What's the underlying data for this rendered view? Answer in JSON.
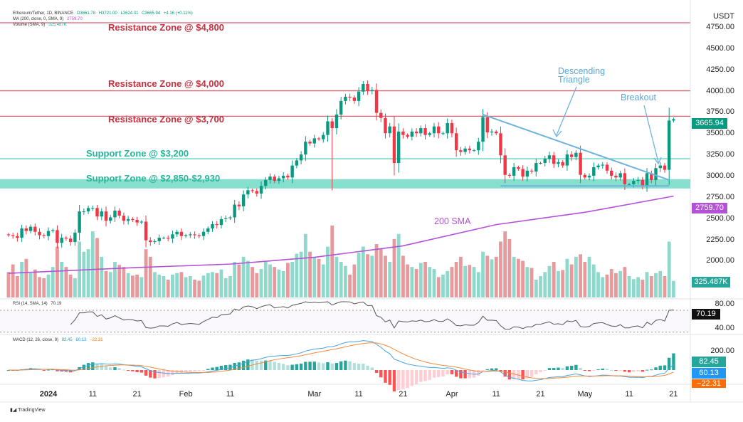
{
  "legend": {
    "symbol": "Ethereum/Tether, 1D, BINANCE",
    "o": "O3661.78",
    "h": "H3721.00",
    "l": "L3624.31",
    "c": "C3665.94",
    "chg": "+4.16 (+0.11%)",
    "ma_label": "MA (200, close, 0, SMA, 9)",
    "ma_value": "2759.70",
    "vol_label": "Volume (SMA, 9)",
    "vol_value": "325.487K",
    "rsi_label": "RSI (14, SMA, 14)",
    "rsi_value": "70.19",
    "macd_label": "MACD (12, 26, close, 9)",
    "macd_v1": "82.45",
    "macd_v2": "60.13",
    "macd_v3": "−22.31"
  },
  "currency": "USDT",
  "price_ticks": [
    "4750.00",
    "4500.00",
    "4250.00",
    "4000.00",
    "3750.00",
    "3500.00",
    "3250.00",
    "3000.00",
    "2750.00",
    "2500.00",
    "2250.00",
    "2000.00"
  ],
  "rsi_ticks": [
    "80.00",
    "40.00"
  ],
  "macd_ticks": [
    "200.00"
  ],
  "badges": {
    "price": "3665.94",
    "sma": "2759.70",
    "volume": "325.487K",
    "rsi": "70.19",
    "macd": "82.45",
    "signal": "60.13",
    "hist": "−22.31"
  },
  "annotations": {
    "r4800": "Resistance Zone @ $4,800",
    "r4000": "Resistance Zone @ $4,000",
    "r3700": "Resistance Zone @ $3,700",
    "s3200": "Support Zone @ $3,200",
    "s2850": "Support Zone @ $2,850-$2,930",
    "tri1": "Descending",
    "tri2": "Triangle",
    "breakout": "Breakout",
    "sma": "200 SMA"
  },
  "footer": "TradingView",
  "colors": {
    "up": "#089981",
    "down": "#f23645",
    "vol_up": "#8fd9cc",
    "vol_down": "#e8999c",
    "resistance": "#e06470",
    "support": "#5fd6bd",
    "sma": "#b452d6",
    "triangle": "#6eb3de",
    "rsi": "#555555",
    "macd": "#4aa3df",
    "signal": "#f0883e"
  },
  "chart_data": {
    "type": "candlestick",
    "start_date": "2023-12-23",
    "closes": [
      2300,
      2290,
      2270,
      2380,
      2350,
      2400,
      2340,
      2300,
      2290,
      2350,
      2360,
      2210,
      2270,
      2260,
      2220,
      2330,
      2580,
      2580,
      2620,
      2620,
      2520,
      2580,
      2470,
      2510,
      2590,
      2530,
      2470,
      2490,
      2480,
      2450,
      2460,
      2240,
      2220,
      2230,
      2270,
      2270,
      2260,
      2310,
      2340,
      2290,
      2300,
      2310,
      2300,
      2290,
      2340,
      2380,
      2430,
      2420,
      2490,
      2500,
      2510,
      2660,
      2640,
      2780,
      2830,
      2820,
      2790,
      2880,
      2950,
      2990,
      2940,
      2970,
      3000,
      2980,
      3120,
      3180,
      3250,
      3400,
      3380,
      3440,
      3430,
      3480,
      3640,
      3560,
      3720,
      3880,
      3930,
      3920,
      3880,
      3990,
      4080,
      4000,
      4010,
      3740,
      3680,
      3500,
      3580,
      3150,
      3520,
      3480,
      3460,
      3520,
      3500,
      3560,
      3480,
      3500,
      3580,
      3500,
      3500,
      3620,
      3500,
      3300,
      3280,
      3320,
      3300,
      3300,
      3400,
      3690,
      3510,
      3520,
      3500,
      3240,
      3010,
      3000,
      3100,
      3080,
      2990,
      3060,
      3050,
      3150,
      3150,
      3200,
      3240,
      3140,
      3160,
      3120,
      3250,
      3220,
      3270,
      3010,
      2980,
      3000,
      3100,
      3120,
      3130,
      3060,
      3000,
      2980,
      3030,
      2900,
      2900,
      2940,
      2950,
      2880,
      3030,
      2950,
      3090,
      3120,
      3070,
      3650,
      3665.94
    ],
    "volume_k": [
      500,
      650,
      420,
      700,
      760,
      480,
      550,
      400,
      380,
      450,
      600,
      1000,
      700,
      600,
      450,
      380,
      1100,
      900,
      950,
      1300,
      1170,
      800,
      520,
      500,
      700,
      640,
      600,
      480,
      430,
      450,
      400,
      950,
      800,
      500,
      450,
      420,
      350,
      450,
      480,
      500,
      400,
      420,
      350,
      330,
      430,
      480,
      500,
      480,
      550,
      380,
      420,
      700,
      650,
      800,
      720,
      600,
      480,
      560,
      700,
      650,
      600,
      550,
      520,
      680,
      700,
      860,
      900,
      1250,
      900,
      800,
      760,
      650,
      1000,
      1415,
      800,
      700,
      620,
      450,
      650,
      880,
      1000,
      850,
      820,
      1050,
      960,
      820,
      700,
      1150,
      1250,
      820,
      650,
      600,
      560,
      680,
      700,
      600,
      560,
      400,
      450,
      520,
      600,
      700,
      800,
      620,
      640,
      600,
      500,
      900,
      820,
      750,
      800,
      1100,
      1300,
      1150,
      800,
      760,
      720,
      600,
      580,
      350,
      420,
      500,
      620,
      700,
      520,
      540,
      760,
      650,
      800,
      850,
      700,
      800,
      650,
      500,
      400,
      450,
      560,
      480,
      520,
      600,
      420,
      360,
      400,
      350,
      500,
      420,
      480,
      520,
      420,
      1100,
      325.487
    ],
    "sma200": [
      [
        "2023-12-23",
        1852
      ],
      [
        "2024-01-21",
        1920
      ],
      [
        "2024-02-11",
        1960
      ],
      [
        "2024-03-01",
        2040
      ],
      [
        "2024-03-21",
        2175
      ],
      [
        "2024-04-11",
        2425
      ],
      [
        "2024-05-01",
        2570
      ],
      [
        "2024-05-21",
        2759.7
      ]
    ],
    "levels": {
      "resistance": [
        4800,
        4000,
        3700
      ],
      "support": [
        3200
      ],
      "support_band": [
        2850,
        2930
      ]
    },
    "triangle": {
      "upper": [
        [
          "2024-04-08",
          3720
        ],
        [
          "2024-05-20",
          2950
        ]
      ],
      "lower": [
        [
          "2024-04-12",
          2880
        ],
        [
          "2024-05-20",
          2880
        ]
      ]
    },
    "ylim": [
      1900,
      4850
    ],
    "time_labels": [
      [
        "2024",
        "2024-01-01"
      ],
      [
        "11",
        "2024-01-11"
      ],
      [
        "21",
        "2024-01-21"
      ],
      [
        "Feb",
        "2024-02-01"
      ],
      [
        "11",
        "2024-02-11"
      ],
      [
        "Mar",
        "2024-03-01"
      ],
      [
        "11",
        "2024-03-11"
      ],
      [
        "21",
        "2024-03-21"
      ],
      [
        "Apr",
        "2024-04-01"
      ],
      [
        "11",
        "2024-04-11"
      ],
      [
        "21",
        "2024-04-21"
      ],
      [
        "May",
        "2024-05-01"
      ],
      [
        "11",
        "2024-05-11"
      ],
      [
        "21",
        "2024-05-21"
      ]
    ]
  }
}
